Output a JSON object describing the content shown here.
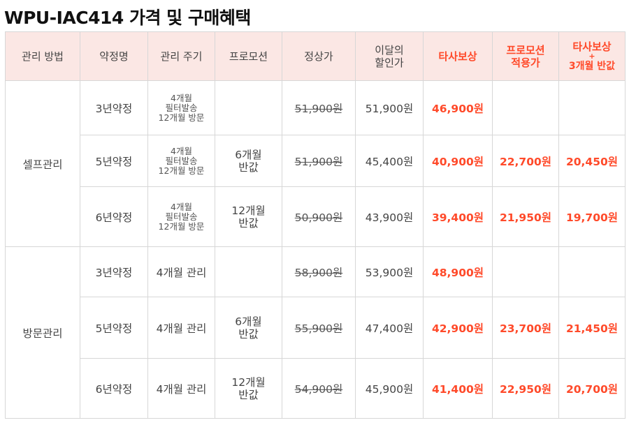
{
  "title": "WPU-IAC414 가격 및 구매혜택",
  "headers": {
    "method": "관리 방법",
    "plan": "약정명",
    "cycle": "관리 주기",
    "promotion": "프로모션",
    "regular": "정상가",
    "month_discount": [
      "이달의",
      "할인가"
    ],
    "competitor": "타사보상",
    "promo_applied": [
      "프로모션",
      "적용가"
    ],
    "competitor_half": [
      "타사보상",
      "+",
      "3개월 반값"
    ]
  },
  "groups": [
    {
      "method": "셀프관리",
      "rows": [
        {
          "plan": "3년약정",
          "cycle": [
            "4개월",
            "필터발송",
            "12개월 방문"
          ],
          "promo": [],
          "regular": "51,900원",
          "month": "51,900원",
          "comp": "46,900원",
          "promo_price": "",
          "comp_half": ""
        },
        {
          "plan": "5년약정",
          "cycle": [
            "4개월",
            "필터발송",
            "12개월 방문"
          ],
          "promo": [
            "6개월",
            "반값"
          ],
          "regular": "51,900원",
          "month": "45,400원",
          "comp": "40,900원",
          "promo_price": "22,700원",
          "comp_half": "20,450원"
        },
        {
          "plan": "6년약정",
          "cycle": [
            "4개월",
            "필터발송",
            "12개월 방문"
          ],
          "promo": [
            "12개월",
            "반값"
          ],
          "regular": "50,900원",
          "month": "43,900원",
          "comp": "39,400원",
          "promo_price": "21,950원",
          "comp_half": "19,700원"
        }
      ]
    },
    {
      "method": "방문관리",
      "rows": [
        {
          "plan": "3년약정",
          "cycle2": "4개월 관리",
          "promo": [],
          "regular": "58,900원",
          "month": "53,900원",
          "comp": "48,900원",
          "promo_price": "",
          "comp_half": ""
        },
        {
          "plan": "5년약정",
          "cycle2": "4개월 관리",
          "promo": [
            "6개월",
            "반값"
          ],
          "regular": "55,900원",
          "month": "47,400원",
          "comp": "42,900원",
          "promo_price": "23,700원",
          "comp_half": "21,450원"
        },
        {
          "plan": "6년약정",
          "cycle2": "4개월 관리",
          "promo": [
            "12개월",
            "반값"
          ],
          "regular": "54,900원",
          "month": "45,900원",
          "comp": "41,400원",
          "promo_price": "22,950원",
          "comp_half": "20,700원"
        }
      ]
    }
  ]
}
